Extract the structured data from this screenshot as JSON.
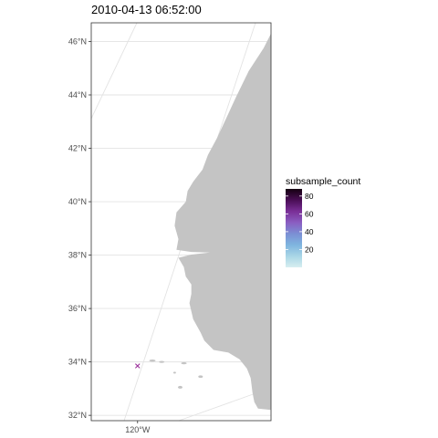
{
  "chart_data": {
    "type": "scatter",
    "title": "2010-04-13 06:52:00",
    "xlabel": "",
    "ylabel": "",
    "xlim": [
      -121.25,
      -116.4
    ],
    "ylim": [
      31.8,
      46.7
    ],
    "x_ticks": [
      {
        "value": -120,
        "label": "120°W"
      }
    ],
    "y_ticks": [
      {
        "value": 32,
        "label": "32°N"
      },
      {
        "value": 34,
        "label": "34°N"
      },
      {
        "value": 36,
        "label": "36°N"
      },
      {
        "value": 38,
        "label": "38°N"
      },
      {
        "value": 40,
        "label": "40°N"
      },
      {
        "value": 42,
        "label": "42°N"
      },
      {
        "value": 44,
        "label": "44°N"
      },
      {
        "value": 46,
        "label": "46°N"
      }
    ],
    "grid": true,
    "points": [
      {
        "lon": -120.0,
        "lat": 33.85,
        "marker": "x",
        "color": "#9a2f9a"
      }
    ],
    "legend": {
      "title": "subsample_count",
      "position": "right",
      "ticks": [
        20,
        40,
        60,
        80
      ],
      "range": [
        0,
        88
      ],
      "colors": [
        "#d7eef0",
        "#a9d6e6",
        "#7fb5df",
        "#7b8fd4",
        "#8a5dc1",
        "#7a2f97",
        "#4a0e55",
        "#140010"
      ]
    },
    "land_color": "#c4c4c4",
    "grid_color": "#e3e3e3"
  }
}
